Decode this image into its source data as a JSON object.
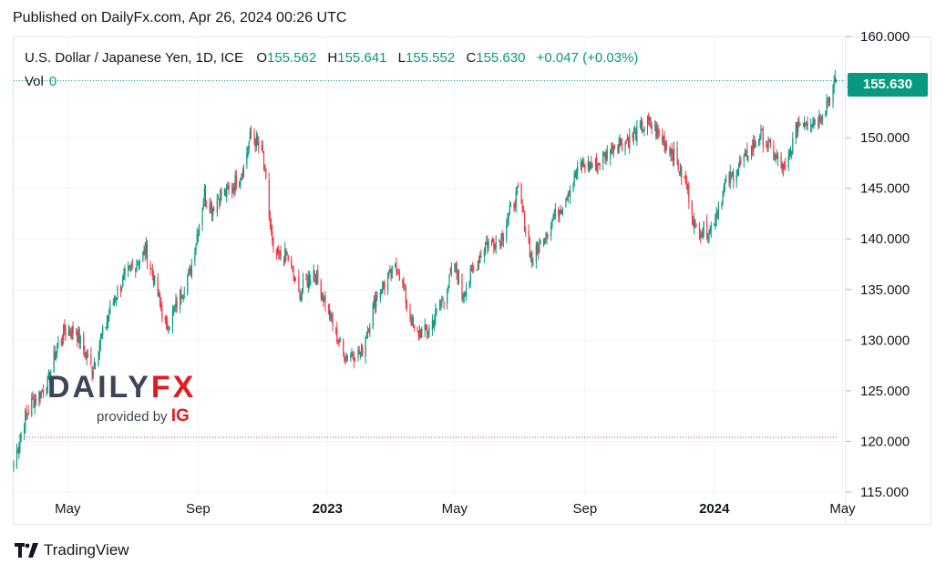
{
  "published": "Published on DailyFx.com, Apr 26, 2024 00:26 UTC",
  "legend": {
    "symbol": "U.S. Dollar / Japanese Yen, 1D, ICE",
    "o_label": "O",
    "o_value": "155.562",
    "h_label": "H",
    "h_value": "155.641",
    "l_label": "L",
    "l_value": "155.552",
    "c_label": "C",
    "c_value": "155.630",
    "change": "+0.047 (+0.03%)",
    "vol_label": "Vol",
    "vol_value": "0"
  },
  "last_price_tag": "155.630",
  "logo": {
    "brand_a": "DAILY",
    "brand_b": "FX",
    "provided": "provided by ",
    "ig": "IG"
  },
  "footer": {
    "tradingview": "TradingView"
  },
  "colors": {
    "up": "#089981",
    "down": "#f23645",
    "grid": "#f0f3fa",
    "accent": "#089981"
  },
  "chart_data": {
    "type": "line",
    "title": "U.S. Dollar / Japanese Yen, 1D, ICE",
    "ylim": [
      115,
      160
    ],
    "yticks": [
      "115.000",
      "120.000",
      "125.000",
      "130.000",
      "135.000",
      "140.000",
      "145.000",
      "150.000",
      "155.000",
      "160.000"
    ],
    "xticks": [
      {
        "label": "May",
        "bold": false,
        "date": "2022-05-01"
      },
      {
        "label": "Sep",
        "bold": false,
        "date": "2022-09-01"
      },
      {
        "label": "2023",
        "bold": true,
        "date": "2023-01-01"
      },
      {
        "label": "May",
        "bold": false,
        "date": "2023-05-01"
      },
      {
        "label": "Sep",
        "bold": false,
        "date": "2023-09-01"
      },
      {
        "label": "2024",
        "bold": true,
        "date": "2024-01-01"
      },
      {
        "label": "May",
        "bold": false,
        "date": "2024-05-01"
      }
    ],
    "x_range": [
      "2022-03-11",
      "2024-05-04"
    ],
    "last_price": 155.63,
    "reference_level": 120.4,
    "series": [
      {
        "dates": [
          "2022-03-11",
          "2022-03-22",
          "2022-03-28",
          "2022-04-12",
          "2022-04-20",
          "2022-04-28",
          "2022-05-09",
          "2022-05-24",
          "2022-06-01",
          "2022-06-15",
          "2022-06-23",
          "2022-07-14",
          "2022-08-02",
          "2022-08-10",
          "2022-08-25",
          "2022-09-07",
          "2022-09-14",
          "2022-09-22",
          "2022-10-01",
          "2022-10-14",
          "2022-10-21",
          "2022-11-01",
          "2022-11-11",
          "2022-11-24",
          "2022-12-05",
          "2022-12-19",
          "2022-12-28",
          "2023-01-16",
          "2023-02-02",
          "2023-02-16",
          "2023-03-08",
          "2023-03-24",
          "2023-04-06",
          "2023-04-21",
          "2023-05-01",
          "2023-05-08",
          "2023-05-30",
          "2023-06-12",
          "2023-06-30",
          "2023-07-13",
          "2023-07-28",
          "2023-08-10",
          "2023-08-28",
          "2023-09-12",
          "2023-09-28",
          "2023-10-13",
          "2023-10-31",
          "2023-11-08",
          "2023-11-22",
          "2023-12-07",
          "2023-12-14",
          "2023-12-28",
          "2024-01-12",
          "2024-02-02",
          "2024-02-13",
          "2024-03-08",
          "2024-03-20",
          "2024-04-09",
          "2024-04-25"
        ],
        "values": [
          117.8,
          122.4,
          123.8,
          125.7,
          129.0,
          131.0,
          130.8,
          127.1,
          130.0,
          134.4,
          136.1,
          138.9,
          131.1,
          133.1,
          137.0,
          144.5,
          143.0,
          144.5,
          144.7,
          147.1,
          150.5,
          148.3,
          138.4,
          138.3,
          134.5,
          136.9,
          134.3,
          128.6,
          128.7,
          134.4,
          137.3,
          130.7,
          130.9,
          134.3,
          137.4,
          134.5,
          139.5,
          139.8,
          144.7,
          137.8,
          141.1,
          143.4,
          147.2,
          147.3,
          149.3,
          149.8,
          151.5,
          150.4,
          148.8,
          144.8,
          141.0,
          140.8,
          145.5,
          148.4,
          150.4,
          146.6,
          151.6,
          151.9,
          155.6
        ]
      }
    ]
  }
}
